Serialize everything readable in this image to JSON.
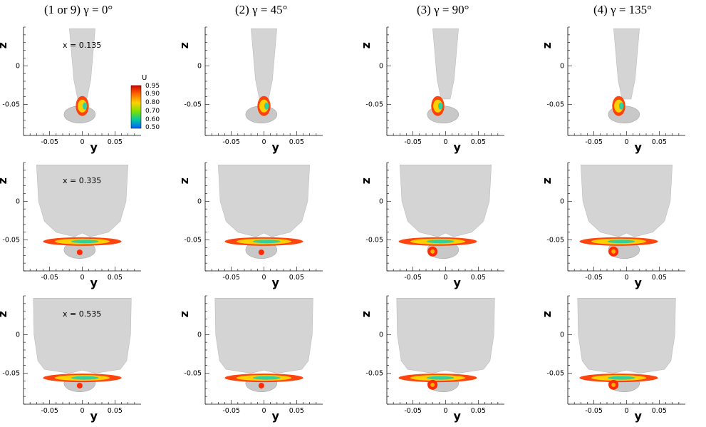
{
  "columns": [
    {
      "title": "(1 or 9) γ = 0°"
    },
    {
      "title": "(2) γ = 45°"
    },
    {
      "title": "(3) γ = 90°"
    },
    {
      "title": "(4) γ = 135°"
    }
  ],
  "rows": [
    {
      "x_label": "x = 0.135"
    },
    {
      "x_label": "x = 0.335"
    },
    {
      "x_label": "x = 0.535"
    }
  ],
  "axes": {
    "xlabel": "y",
    "ylabel": "z",
    "x_ticks": [
      "-0.05",
      "0",
      "0.05"
    ],
    "z_ticks": [
      "0",
      "-0.05"
    ]
  },
  "colorbar": {
    "title": "U",
    "labels": [
      "0.95",
      "0.90",
      "0.80",
      "0.70",
      "0.60",
      "0.50"
    ],
    "colors": [
      "#d60000",
      "#ff6a00",
      "#ffd000",
      "#7fe000",
      "#00c8a0",
      "#0060ff"
    ]
  },
  "chart_data": {
    "type": "heatmap",
    "variable": "U",
    "color_range": [
      0.5,
      0.95
    ],
    "xlabel": "y",
    "ylabel": "z",
    "xlim": [
      -0.09,
      0.09
    ],
    "ylim": [
      -0.09,
      0.05
    ],
    "panels": [
      {
        "column": "(1 or 9) γ = 0°",
        "station": "x = 0.135"
      },
      {
        "column": "(2) γ = 45°",
        "station": "x = 0.135"
      },
      {
        "column": "(3) γ = 90°",
        "station": "x = 0.135"
      },
      {
        "column": "(4) γ = 135°",
        "station": "x = 0.135"
      },
      {
        "column": "(1 or 9) γ = 0°",
        "station": "x = 0.335"
      },
      {
        "column": "(2) γ = 45°",
        "station": "x = 0.335"
      },
      {
        "column": "(3) γ = 90°",
        "station": "x = 0.335"
      },
      {
        "column": "(4) γ = 135°",
        "station": "x = 0.335"
      },
      {
        "column": "(1 or 9) γ = 0°",
        "station": "x = 0.535"
      },
      {
        "column": "(2) γ = 45°",
        "station": "x = 0.535"
      },
      {
        "column": "(3) γ = 90°",
        "station": "x = 0.535"
      },
      {
        "column": "(4) γ = 135°",
        "station": "x = 0.535"
      }
    ]
  }
}
